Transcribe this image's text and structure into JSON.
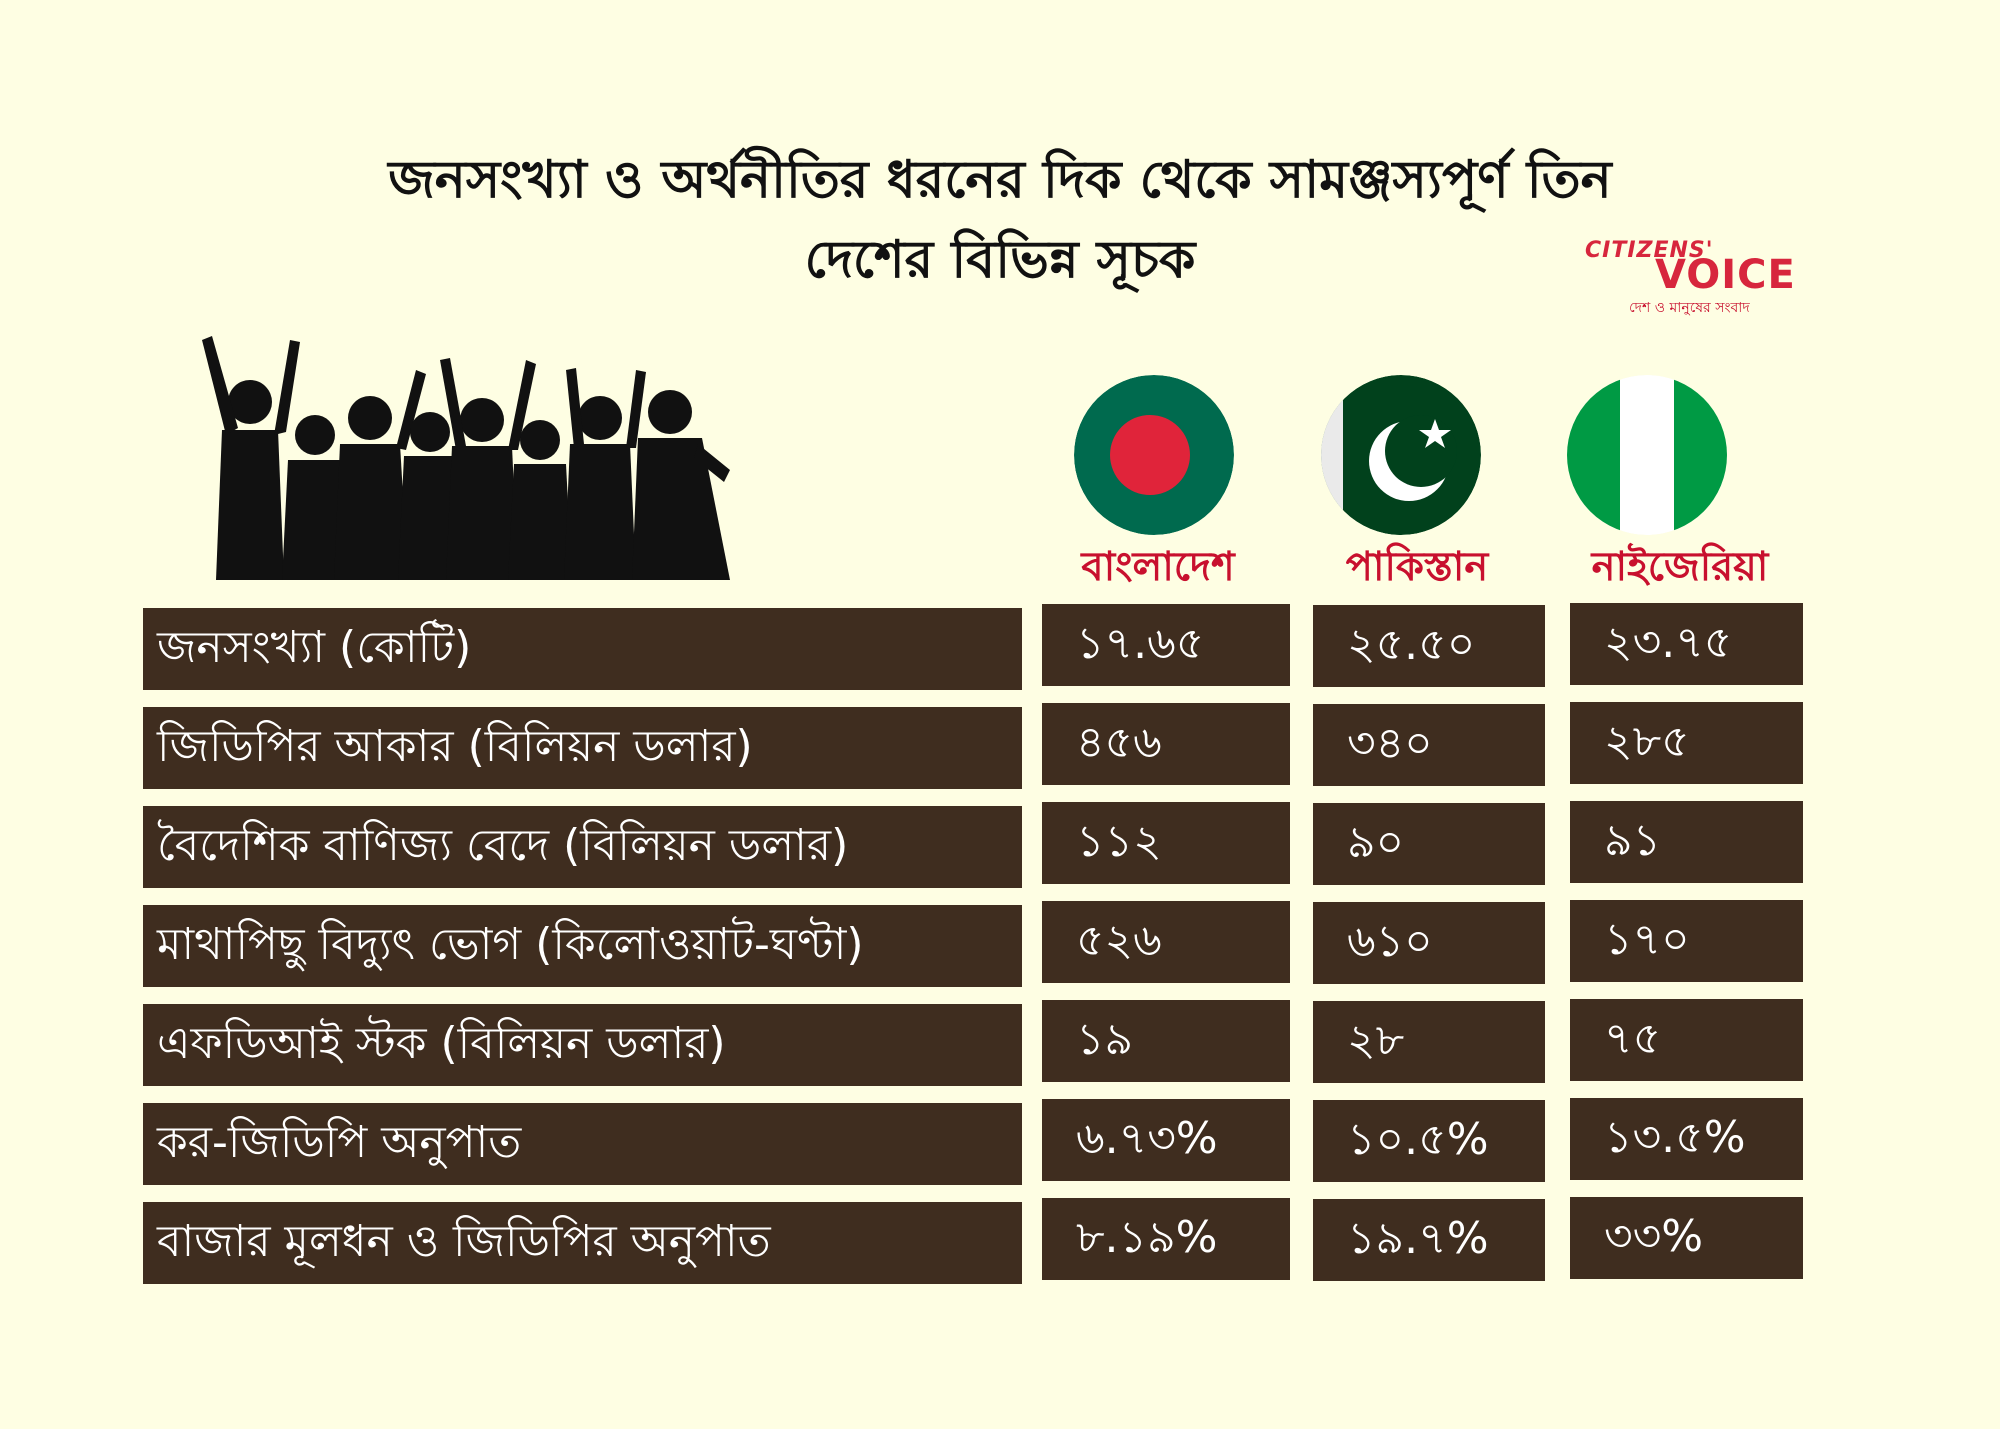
{
  "title": {
    "line1": "জনসংখ্যা ও অর্থনীতির ধরনের দিক থেকে সামঞ্জস্যপূর্ণ তিন",
    "line2": "দেশের বিভিন্ন সূচক"
  },
  "logo": {
    "line1": "CITIZENS'",
    "line2": "VOICE",
    "tagline": "দেশ ও মানুষের সংবাদ"
  },
  "colors": {
    "background": "#fefee3",
    "row_fill": "#3f2d1f",
    "country_label": "#c8102e"
  },
  "icons": {
    "crowd": "crowd-silhouette-icon",
    "flags": [
      "bangladesh-flag-icon",
      "pakistan-flag-icon",
      "nigeria-flag-icon"
    ]
  },
  "chart_data": {
    "type": "table",
    "columns": [
      "বাংলাদেশ",
      "পাকিস্তান",
      "নাইজেরিয়া"
    ],
    "rows": [
      {
        "label": "জনসংখ্যা (কোটি)",
        "values": [
          "১৭.৬৫",
          "২৫.৫০",
          "২৩.৭৫"
        ]
      },
      {
        "label": "জিডিপির আকার (বিলিয়ন ডলার)",
        "values": [
          "৪৫৬",
          "৩৪০",
          "২৮৫"
        ]
      },
      {
        "label": "বৈদেশিক বাণিজ্য বেদে (বিলিয়ন ডলার)",
        "values": [
          "১১২",
          "৯০",
          "৯১"
        ]
      },
      {
        "label": "মাথাপিছু বিদ্যুৎ ভোগ (কিলোওয়াট-ঘণ্টা)",
        "values": [
          "৫২৬",
          "৬১০",
          "১৭০"
        ]
      },
      {
        "label": "এফডিআই স্টক (বিলিয়ন ডলার)",
        "values": [
          "১৯",
          "২৮",
          "৭৫"
        ]
      },
      {
        "label": "কর-জিডিপি অনুপাত",
        "values": [
          "৬.৭৩%",
          "১০.৫%",
          "১৩.৫%"
        ]
      },
      {
        "label": "বাজার মূলধন ও জিডিপির অনুপাত",
        "values": [
          "৮.১৯%",
          "১৯.৭%",
          "৩৩%"
        ]
      }
    ]
  }
}
